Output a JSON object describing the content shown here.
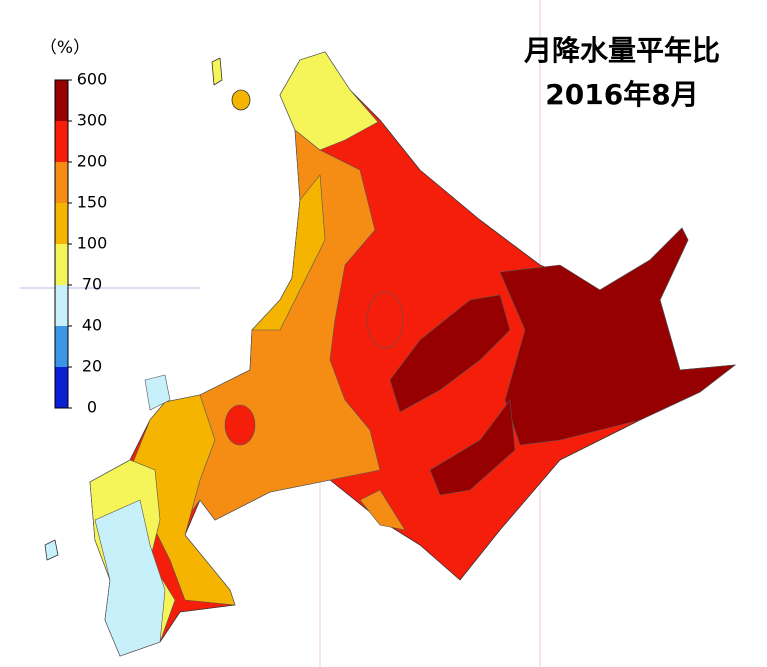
{
  "map": {
    "title": "月降水量平年比",
    "subtitle": "2016年8月",
    "legend": {
      "unit": "（%）",
      "ticks": [
        0,
        20,
        40,
        70,
        100,
        150,
        200,
        300,
        600
      ],
      "colors": [
        "#0a1ed2",
        "#3c96e6",
        "#c8f0fa",
        "#f5f55a",
        "#f5b400",
        "#f58c14",
        "#f51e0a",
        "#960000"
      ]
    }
  }
}
